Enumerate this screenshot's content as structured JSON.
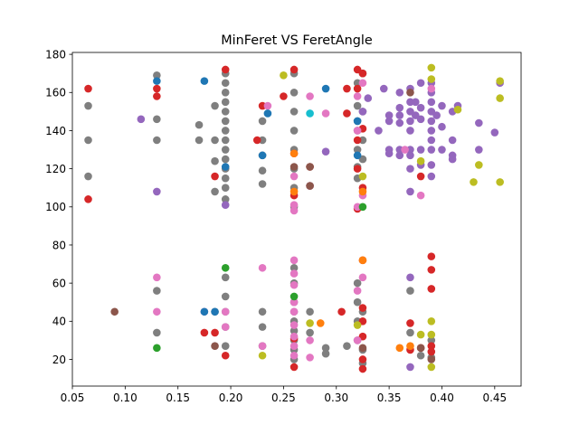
{
  "chart_data": {
    "type": "scatter",
    "title": "MinFeret VS FeretAngle",
    "xlabel": "",
    "ylabel": "",
    "xlim": [
      0.05,
      0.475
    ],
    "ylim": [
      6,
      181
    ],
    "x_ticks": [
      0.05,
      0.1,
      0.15,
      0.2,
      0.25,
      0.3,
      0.35,
      0.4,
      0.45
    ],
    "x_tick_labels": [
      "0.05",
      "0.10",
      "0.15",
      "0.20",
      "0.25",
      "0.30",
      "0.35",
      "0.40",
      "0.45"
    ],
    "y_ticks": [
      20,
      40,
      60,
      80,
      100,
      120,
      140,
      160,
      180
    ],
    "y_tick_labels": [
      "20",
      "40",
      "60",
      "80",
      "100",
      "120",
      "140",
      "160",
      "180"
    ],
    "grid": false,
    "legend": "none",
    "palette": [
      "#1f77b4",
      "#ff7f0e",
      "#2ca02c",
      "#d62728",
      "#9467bd",
      "#8c564b",
      "#e377c2",
      "#7f7f7f",
      "#bcbd22",
      "#17becf"
    ],
    "series": [
      {
        "color": "#7f7f7f",
        "points": [
          [
            0.065,
            153
          ],
          [
            0.065,
            135
          ],
          [
            0.065,
            116
          ],
          [
            0.13,
            169
          ],
          [
            0.13,
            146
          ],
          [
            0.13,
            135
          ],
          [
            0.13,
            56
          ],
          [
            0.13,
            34
          ],
          [
            0.17,
            143
          ],
          [
            0.17,
            135
          ],
          [
            0.185,
            153
          ],
          [
            0.185,
            135
          ],
          [
            0.185,
            124
          ],
          [
            0.185,
            108
          ],
          [
            0.185,
            45
          ],
          [
            0.195,
            170
          ],
          [
            0.195,
            165
          ],
          [
            0.195,
            160
          ],
          [
            0.195,
            155
          ],
          [
            0.195,
            150
          ],
          [
            0.195,
            145
          ],
          [
            0.195,
            140
          ],
          [
            0.195,
            135
          ],
          [
            0.195,
            130
          ],
          [
            0.195,
            125
          ],
          [
            0.195,
            120
          ],
          [
            0.195,
            115
          ],
          [
            0.195,
            110
          ],
          [
            0.195,
            104
          ],
          [
            0.195,
            63
          ],
          [
            0.195,
            53
          ],
          [
            0.195,
            45
          ],
          [
            0.195,
            37
          ],
          [
            0.195,
            27
          ],
          [
            0.23,
            145
          ],
          [
            0.23,
            135
          ],
          [
            0.23,
            127
          ],
          [
            0.23,
            119
          ],
          [
            0.23,
            112
          ],
          [
            0.23,
            45
          ],
          [
            0.23,
            37
          ],
          [
            0.23,
            27
          ],
          [
            0.26,
            170
          ],
          [
            0.26,
            160
          ],
          [
            0.26,
            150
          ],
          [
            0.26,
            140
          ],
          [
            0.26,
            130
          ],
          [
            0.26,
            120
          ],
          [
            0.26,
            110
          ],
          [
            0.26,
            100
          ],
          [
            0.26,
            68
          ],
          [
            0.26,
            60
          ],
          [
            0.26,
            50
          ],
          [
            0.26,
            45
          ],
          [
            0.26,
            40
          ],
          [
            0.26,
            35
          ],
          [
            0.26,
            30
          ],
          [
            0.26,
            25
          ],
          [
            0.26,
            20
          ],
          [
            0.275,
            121
          ],
          [
            0.275,
            111
          ],
          [
            0.275,
            45
          ],
          [
            0.275,
            34
          ],
          [
            0.29,
            23
          ],
          [
            0.29,
            26
          ],
          [
            0.31,
            27
          ],
          [
            0.32,
            165
          ],
          [
            0.32,
            153
          ],
          [
            0.32,
            145
          ],
          [
            0.32,
            140
          ],
          [
            0.32,
            130
          ],
          [
            0.32,
            121
          ],
          [
            0.32,
            115
          ],
          [
            0.32,
            60
          ],
          [
            0.32,
            50
          ],
          [
            0.32,
            40
          ],
          [
            0.32,
            30
          ],
          [
            0.325,
            170
          ],
          [
            0.325,
            150
          ],
          [
            0.325,
            135
          ],
          [
            0.325,
            125
          ],
          [
            0.325,
            45
          ],
          [
            0.325,
            25
          ],
          [
            0.325,
            18
          ],
          [
            0.37,
            56
          ],
          [
            0.37,
            34
          ],
          [
            0.38,
            22
          ],
          [
            0.39,
            30
          ],
          [
            0.39,
            21
          ]
        ]
      },
      {
        "color": "#d62728",
        "points": [
          [
            0.065,
            162
          ],
          [
            0.065,
            104
          ],
          [
            0.13,
            162
          ],
          [
            0.13,
            158
          ],
          [
            0.175,
            34
          ],
          [
            0.185,
            116
          ],
          [
            0.185,
            34
          ],
          [
            0.195,
            172
          ],
          [
            0.195,
            22
          ],
          [
            0.225,
            135
          ],
          [
            0.23,
            153
          ],
          [
            0.25,
            158
          ],
          [
            0.26,
            172
          ],
          [
            0.26,
            128
          ],
          [
            0.26,
            106
          ],
          [
            0.26,
            31
          ],
          [
            0.26,
            16
          ],
          [
            0.275,
            121
          ],
          [
            0.305,
            45
          ],
          [
            0.31,
            149
          ],
          [
            0.31,
            162
          ],
          [
            0.32,
            172
          ],
          [
            0.32,
            162
          ],
          [
            0.32,
            135
          ],
          [
            0.32,
            120
          ],
          [
            0.32,
            99
          ],
          [
            0.325,
            170
          ],
          [
            0.325,
            141
          ],
          [
            0.325,
            110
          ],
          [
            0.325,
            72
          ],
          [
            0.325,
            47
          ],
          [
            0.325,
            40
          ],
          [
            0.325,
            32
          ],
          [
            0.325,
            20
          ],
          [
            0.325,
            15
          ],
          [
            0.37,
            39
          ],
          [
            0.37,
            25
          ],
          [
            0.38,
            26
          ],
          [
            0.38,
            116
          ],
          [
            0.39,
            74
          ],
          [
            0.39,
            67
          ],
          [
            0.39,
            57
          ],
          [
            0.39,
            27
          ],
          [
            0.39,
            24
          ]
        ]
      },
      {
        "color": "#9467bd",
        "points": [
          [
            0.115,
            146
          ],
          [
            0.13,
            108
          ],
          [
            0.195,
            101
          ],
          [
            0.29,
            129
          ],
          [
            0.325,
            150
          ],
          [
            0.33,
            157
          ],
          [
            0.34,
            140
          ],
          [
            0.345,
            162
          ],
          [
            0.35,
            148
          ],
          [
            0.35,
            145
          ],
          [
            0.35,
            130
          ],
          [
            0.35,
            128
          ],
          [
            0.36,
            160
          ],
          [
            0.36,
            152
          ],
          [
            0.36,
            148
          ],
          [
            0.36,
            144
          ],
          [
            0.36,
            130
          ],
          [
            0.36,
            127
          ],
          [
            0.37,
            162
          ],
          [
            0.37,
            155
          ],
          [
            0.37,
            150
          ],
          [
            0.37,
            145
          ],
          [
            0.37,
            140
          ],
          [
            0.37,
            130
          ],
          [
            0.37,
            127
          ],
          [
            0.37,
            120
          ],
          [
            0.37,
            108
          ],
          [
            0.37,
            63
          ],
          [
            0.37,
            16
          ],
          [
            0.375,
            155
          ],
          [
            0.375,
            148
          ],
          [
            0.38,
            165
          ],
          [
            0.38,
            152
          ],
          [
            0.38,
            146
          ],
          [
            0.38,
            130
          ],
          [
            0.38,
            122
          ],
          [
            0.39,
            165
          ],
          [
            0.39,
            160
          ],
          [
            0.39,
            155
          ],
          [
            0.39,
            150
          ],
          [
            0.39,
            145
          ],
          [
            0.39,
            140
          ],
          [
            0.39,
            135
          ],
          [
            0.39,
            130
          ],
          [
            0.39,
            122
          ],
          [
            0.39,
            116
          ],
          [
            0.395,
            148
          ],
          [
            0.4,
            153
          ],
          [
            0.4,
            142
          ],
          [
            0.4,
            130
          ],
          [
            0.41,
            150
          ],
          [
            0.41,
            135
          ],
          [
            0.41,
            127
          ],
          [
            0.41,
            125
          ],
          [
            0.415,
            153
          ],
          [
            0.435,
            144
          ],
          [
            0.435,
            130
          ],
          [
            0.45,
            139
          ],
          [
            0.455,
            165
          ]
        ]
      },
      {
        "color": "#e377c2",
        "points": [
          [
            0.13,
            63
          ],
          [
            0.13,
            45
          ],
          [
            0.175,
            45
          ],
          [
            0.195,
            45
          ],
          [
            0.195,
            37
          ],
          [
            0.23,
            68
          ],
          [
            0.23,
            27
          ],
          [
            0.235,
            153
          ],
          [
            0.26,
            116
          ],
          [
            0.26,
            98
          ],
          [
            0.26,
            101
          ],
          [
            0.26,
            72
          ],
          [
            0.26,
            65
          ],
          [
            0.26,
            59
          ],
          [
            0.26,
            50
          ],
          [
            0.26,
            45
          ],
          [
            0.26,
            38
          ],
          [
            0.26,
            32
          ],
          [
            0.26,
            27
          ],
          [
            0.26,
            22
          ],
          [
            0.275,
            158
          ],
          [
            0.275,
            111
          ],
          [
            0.275,
            30
          ],
          [
            0.275,
            21
          ],
          [
            0.29,
            149
          ],
          [
            0.32,
            158
          ],
          [
            0.32,
            140
          ],
          [
            0.32,
            100
          ],
          [
            0.32,
            56
          ],
          [
            0.32,
            30
          ],
          [
            0.325,
            165
          ],
          [
            0.325,
            106
          ],
          [
            0.325,
            63
          ],
          [
            0.365,
            130
          ],
          [
            0.38,
            106
          ],
          [
            0.39,
            162
          ]
        ]
      },
      {
        "color": "#1f77b4",
        "points": [
          [
            0.13,
            166
          ],
          [
            0.175,
            166
          ],
          [
            0.175,
            45
          ],
          [
            0.185,
            45
          ],
          [
            0.195,
            121
          ],
          [
            0.23,
            127
          ],
          [
            0.235,
            149
          ],
          [
            0.29,
            162
          ],
          [
            0.32,
            145
          ],
          [
            0.32,
            127
          ]
        ]
      },
      {
        "color": "#2ca02c",
        "points": [
          [
            0.13,
            26
          ],
          [
            0.195,
            68
          ],
          [
            0.26,
            53
          ],
          [
            0.325,
            100
          ]
        ]
      },
      {
        "color": "#ff7f0e",
        "points": [
          [
            0.26,
            108
          ],
          [
            0.26,
            128
          ],
          [
            0.285,
            39
          ],
          [
            0.325,
            108
          ],
          [
            0.325,
            72
          ],
          [
            0.36,
            26
          ],
          [
            0.37,
            27
          ]
        ]
      },
      {
        "color": "#8c564b",
        "points": [
          [
            0.09,
            45
          ],
          [
            0.185,
            27
          ],
          [
            0.26,
            121
          ],
          [
            0.275,
            121
          ],
          [
            0.275,
            111
          ],
          [
            0.325,
            26
          ],
          [
            0.37,
            160
          ],
          [
            0.38,
            26
          ],
          [
            0.39,
            20
          ]
        ]
      },
      {
        "color": "#bcbd22",
        "points": [
          [
            0.23,
            22
          ],
          [
            0.25,
            169
          ],
          [
            0.275,
            39
          ],
          [
            0.32,
            38
          ],
          [
            0.325,
            116
          ],
          [
            0.38,
            124
          ],
          [
            0.38,
            33
          ],
          [
            0.39,
            173
          ],
          [
            0.39,
            167
          ],
          [
            0.39,
            40
          ],
          [
            0.39,
            33
          ],
          [
            0.39,
            16
          ],
          [
            0.415,
            151
          ],
          [
            0.43,
            113
          ],
          [
            0.435,
            122
          ],
          [
            0.455,
            166
          ],
          [
            0.455,
            157
          ],
          [
            0.455,
            113
          ]
        ]
      },
      {
        "color": "#17becf",
        "points": [
          [
            0.275,
            149
          ]
        ]
      }
    ]
  }
}
